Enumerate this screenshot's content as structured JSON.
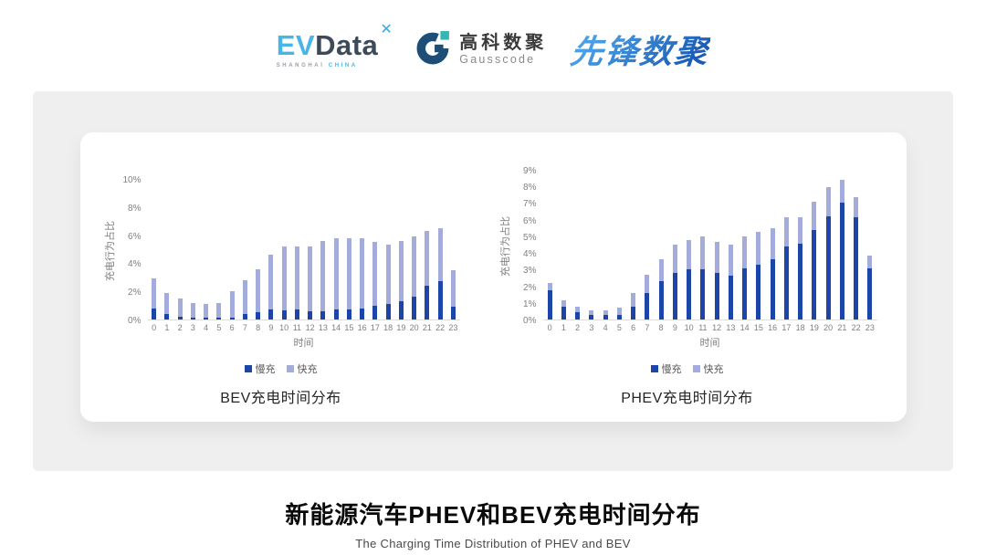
{
  "header": {
    "evdata": {
      "part_ev": "EV",
      "part_data": "Data",
      "mark": "✕",
      "sub_left": "SHANGHAI",
      "sub_right": "CHINA"
    },
    "gausscode": {
      "name_cn": "高科数聚",
      "name_en": "Gausscode"
    },
    "pioneer": {
      "name": "先锋数聚"
    }
  },
  "colors": {
    "slow_charge": "#1B45A8",
    "fast_charge": "#A3ACDA",
    "band_background": "#EFEFEF",
    "axis_text": "#7F7F7F"
  },
  "chart_data": [
    {
      "id": "bev",
      "type": "bar",
      "stacked": true,
      "title": "BEV充电时间分布",
      "xlabel": "时间",
      "ylabel": "充电行为占比",
      "ylim": [
        0,
        10
      ],
      "ytick_step": 2,
      "yticks": [
        "0%",
        "2%",
        "4%",
        "6%",
        "8%",
        "10%"
      ],
      "grid": false,
      "legend_position": "bottom",
      "categories": [
        "0",
        "1",
        "2",
        "3",
        "4",
        "5",
        "6",
        "7",
        "8",
        "9",
        "10",
        "11",
        "12",
        "13",
        "14",
        "15",
        "16",
        "17",
        "18",
        "19",
        "20",
        "21",
        "22",
        "23"
      ],
      "legend": [
        "慢充",
        "快充"
      ],
      "series": [
        {
          "name": "慢充",
          "color_key": "slow_charge",
          "values": [
            0.8,
            0.4,
            0.2,
            0.1,
            0.1,
            0.1,
            0.15,
            0.4,
            0.5,
            0.7,
            0.65,
            0.7,
            0.6,
            0.6,
            0.7,
            0.7,
            0.8,
            1.0,
            1.1,
            1.3,
            1.6,
            2.4,
            2.7,
            0.9
          ]
        },
        {
          "name": "快充",
          "color_key": "fast_charge",
          "values": [
            2.1,
            1.5,
            1.3,
            1.1,
            1.0,
            1.1,
            1.85,
            2.4,
            3.1,
            3.9,
            4.55,
            4.5,
            4.6,
            5.0,
            5.1,
            5.1,
            5.0,
            4.5,
            4.2,
            4.3,
            4.3,
            3.9,
            3.8,
            2.6
          ]
        }
      ]
    },
    {
      "id": "phev",
      "type": "bar",
      "stacked": true,
      "title": "PHEV充电时间分布",
      "xlabel": "时间",
      "ylabel": "充电行为占比",
      "ylim": [
        0,
        9
      ],
      "ytick_step": 1,
      "yticks": [
        "0%",
        "1%",
        "2%",
        "3%",
        "4%",
        "5%",
        "6%",
        "7%",
        "8%",
        "9%"
      ],
      "grid": false,
      "legend_position": "bottom",
      "categories": [
        "0",
        "1",
        "2",
        "3",
        "4",
        "5",
        "6",
        "7",
        "8",
        "9",
        "10",
        "11",
        "12",
        "13",
        "14",
        "15",
        "16",
        "17",
        "18",
        "19",
        "20",
        "21",
        "22",
        "23"
      ],
      "legend": [
        "慢充",
        "快充"
      ],
      "series": [
        {
          "name": "慢充",
          "color_key": "slow_charge",
          "values": [
            1.75,
            0.75,
            0.45,
            0.3,
            0.25,
            0.3,
            0.75,
            1.6,
            2.3,
            2.8,
            3.0,
            3.0,
            2.8,
            2.65,
            3.1,
            3.3,
            3.6,
            4.4,
            4.55,
            5.4,
            6.2,
            7.0,
            6.15,
            3.05
          ]
        },
        {
          "name": "快充",
          "color_key": "fast_charge",
          "values": [
            0.45,
            0.4,
            0.3,
            0.25,
            0.3,
            0.4,
            0.85,
            1.1,
            1.35,
            1.7,
            1.8,
            2.0,
            1.85,
            1.85,
            1.9,
            1.95,
            1.9,
            1.75,
            1.6,
            1.7,
            1.75,
            1.4,
            1.2,
            0.8
          ]
        }
      ]
    }
  ],
  "footer": {
    "title": "新能源汽车PHEV和BEV充电时间分布",
    "subtitle": "The Charging Time Distribution of PHEV and BEV"
  }
}
